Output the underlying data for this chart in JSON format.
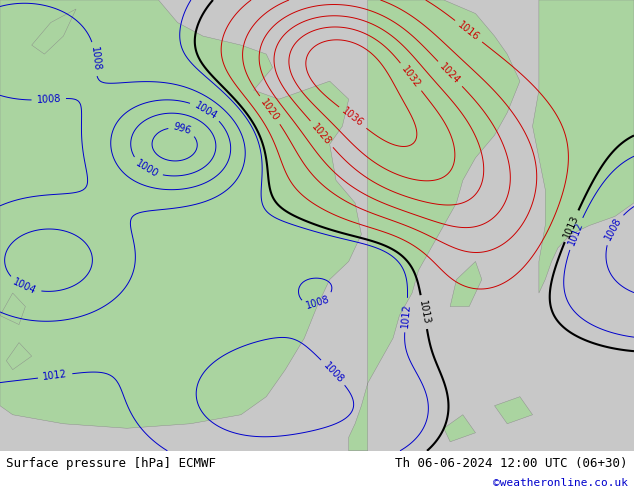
{
  "title_left": "Surface pressure [hPa] ECMWF",
  "title_right": "Th 06-06-2024 12:00 UTC (06+30)",
  "watermark": "©weatheronline.co.uk",
  "watermark_color": "#0000cc",
  "fig_width": 6.34,
  "fig_height": 4.9,
  "dpi": 100,
  "footer_fontsize": 9,
  "watermark_fontsize": 8,
  "contour_blue_color": "#0000cc",
  "contour_red_color": "#cc0000",
  "contour_black_color": "#000000",
  "contour_label_fontsize": 7,
  "land_color": "#aad4a0",
  "sea_color": "#c8c8c8",
  "footer_bg": "#ffffff"
}
